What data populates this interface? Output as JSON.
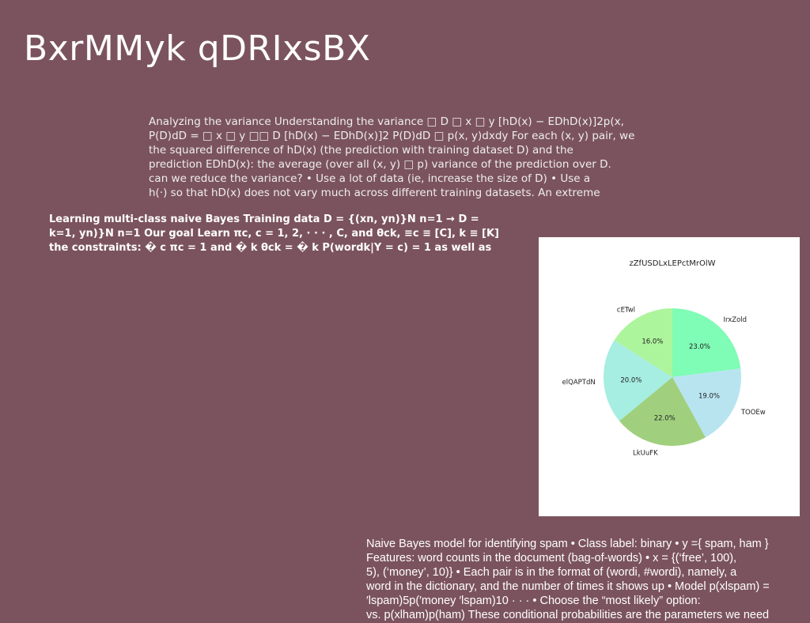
{
  "slide": {
    "title": "BxrMMyk qDRIxsBX",
    "variance_lines": [
      "Analyzing the variance Understanding the variance □ D □ x □ y [hD(x) − EDhD(x)]2p(x,",
      "P(D)dD = □ x □ y □□ D [hD(x) − EDhD(x)]2 P(D)dD □ p(x, y)dxdy For each (x, y) pair, we",
      "the squared difference of hD(x) (the prediction with training dataset D) and the",
      "prediction EDhD(x): the average (over all (x, y) □ p) variance of the prediction over D.",
      "can we reduce the variance? • Use a lot of data (ie, increase the size of D) • Use a",
      "h(·) so that hD(x) does not vary much across different training datasets. An extreme"
    ],
    "bayes_lines": [
      "Learning multi-class naive Bayes Training data D = {(xn, yn)}N n=1 → D =",
      "k=1, yn)}N n=1 Our goal Learn πc, c = 1, 2, · · · , C, and θck, ≡c ≡ [C], k ≡ [K]",
      "the constraints: � c πc = 1 and � k θck = � k P(wordk|Y = c) = 1 as well as"
    ],
    "spam_lines": [
      "Naive Bayes model for identifying spam • Class label: binary • y ={ spam, ham }",
      "Features: word counts in the document (bag-of-words) • x = {(‘free’, 100),",
      "5), (‘money’, 10)} • Each pair is in the format of (wordi, #wordi), namely, a",
      "word in the dictionary, and the number of times it shows up • Model p(xlspam) =",
      "′lspam)5p(′money ′lspam)10 · · · • Choose the “most likely” option:",
      "vs. p(xlham)p(ham) These conditional probabilities are the parameters we need"
    ]
  },
  "chart_data": {
    "type": "pie",
    "title": "zZfUSDLxLEPctMrOlW",
    "slices": [
      {
        "label": "IrxZold",
        "value": 23.0,
        "display": "23.0%",
        "color": "#7ffcb5"
      },
      {
        "label": "TOOEw",
        "value": 19.0,
        "display": "19.0%",
        "color": "#b8e4f0"
      },
      {
        "label": "LkUuFK",
        "value": 22.0,
        "display": "22.0%",
        "color": "#a0d07e"
      },
      {
        "label": "elQAPTdN",
        "value": 20.0,
        "display": "20.0%",
        "color": "#a6ede2"
      },
      {
        "label": "cETwl",
        "value": 16.0,
        "display": "16.0%",
        "color": "#adf59c"
      }
    ],
    "start_angle": "top",
    "direction": "clockwise",
    "legend": "none"
  }
}
